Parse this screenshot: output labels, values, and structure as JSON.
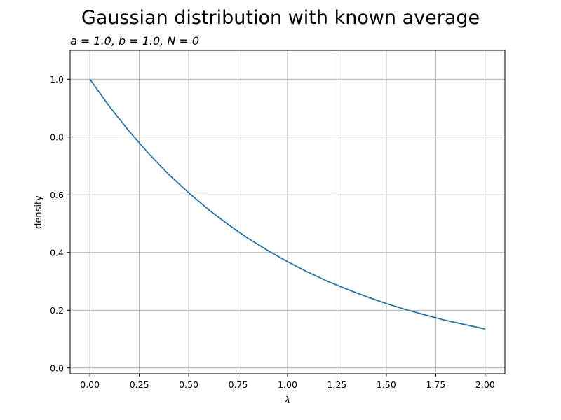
{
  "chart_data": {
    "type": "line",
    "title": "Gaussian distribution with known average",
    "subtitle": "a = 1.0, b = 1.0, N = 0",
    "xlabel": "λ",
    "ylabel": "density",
    "xlim": [
      -0.1,
      2.1
    ],
    "ylim": [
      -0.02,
      1.1
    ],
    "xticks": [
      "0.00",
      "0.25",
      "0.50",
      "0.75",
      "1.00",
      "1.25",
      "1.50",
      "1.75",
      "2.00"
    ],
    "yticks": [
      "0.0",
      "0.2",
      "0.4",
      "0.6",
      "0.8",
      "1.0"
    ],
    "grid": true,
    "series": [
      {
        "color": "#1f77b4",
        "x": [
          0.0,
          0.1,
          0.2,
          0.3,
          0.4,
          0.5,
          0.6,
          0.7,
          0.8,
          0.9,
          1.0,
          1.1,
          1.2,
          1.3,
          1.4,
          1.5,
          1.6,
          1.7,
          1.8,
          1.9,
          2.0
        ],
        "y": [
          1.0,
          0.905,
          0.819,
          0.741,
          0.67,
          0.607,
          0.549,
          0.497,
          0.449,
          0.407,
          0.368,
          0.333,
          0.301,
          0.273,
          0.247,
          0.223,
          0.202,
          0.183,
          0.165,
          0.15,
          0.135
        ]
      }
    ]
  }
}
